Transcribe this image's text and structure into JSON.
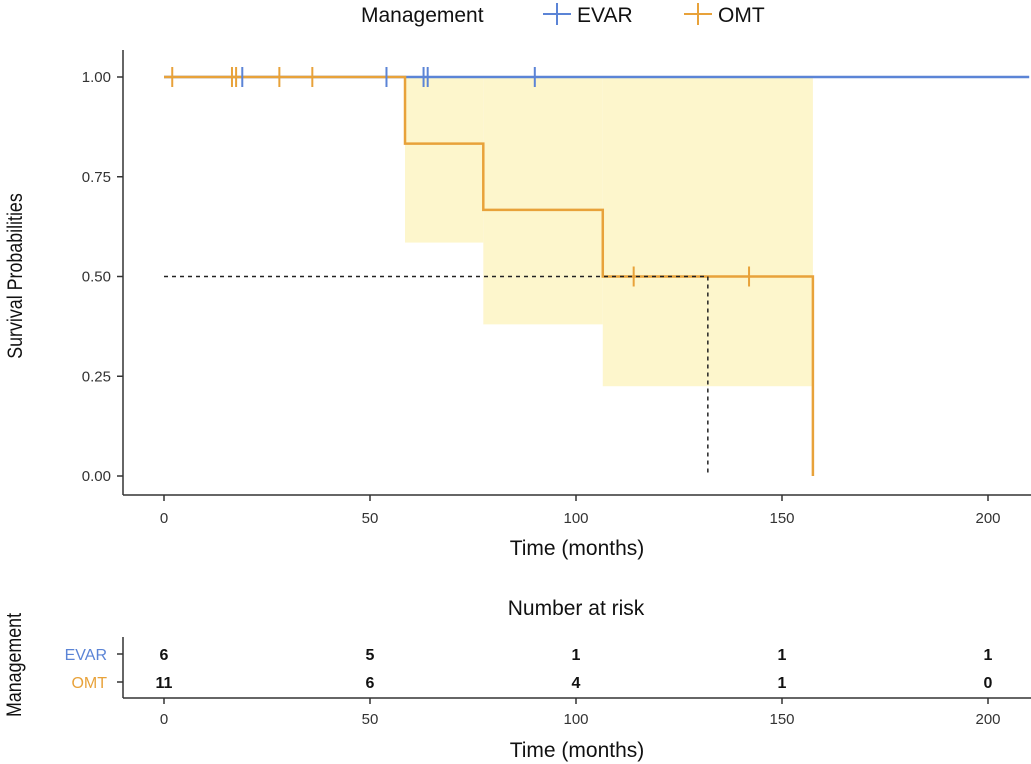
{
  "chart_data": [
    {
      "type": "line",
      "subtype": "kaplan-meier",
      "title": "",
      "xlabel": "Time (months)",
      "ylabel": "Survival Probabilities",
      "xlim": [
        -4,
        210
      ],
      "ylim": [
        0,
        1
      ],
      "xticks": [
        0,
        50,
        100,
        150,
        200
      ],
      "xtick_labels": [
        "0",
        "50",
        "100",
        "150",
        "200"
      ],
      "yticks": [
        0,
        0.25,
        0.5,
        0.75,
        1
      ],
      "ytick_labels": [
        "0.00",
        "0.25",
        "0.50",
        "0.75",
        "1.00"
      ],
      "legend": {
        "title": "Management",
        "position": "top",
        "entries": [
          "EVAR",
          "OMT"
        ]
      },
      "series": [
        {
          "name": "EVAR",
          "color": "#5b84d6",
          "steps": [
            [
              0,
              1.0
            ],
            [
              210,
              1.0
            ]
          ],
          "censor_times": [
            19,
            54,
            63,
            64,
            90
          ]
        },
        {
          "name": "OMT",
          "color": "#e8a23a",
          "steps": [
            [
              0,
              1.0
            ],
            [
              58.5,
              0.833
            ],
            [
              77.5,
              0.667
            ],
            [
              106.5,
              0.5
            ],
            [
              157.5,
              0.0
            ]
          ],
          "censor_times": [
            2,
            16.5,
            17.5,
            28,
            36,
            114,
            142
          ],
          "ci_color": "#fdf6cc",
          "ci": [
            {
              "x0": 58.5,
              "x1": 77.5,
              "lo": 0.585,
              "hi": 1.0
            },
            {
              "x0": 77.5,
              "x1": 106.5,
              "lo": 0.38,
              "hi": 1.0
            },
            {
              "x0": 106.5,
              "x1": 157.5,
              "lo": 0.225,
              "hi": 1.0
            }
          ]
        }
      ],
      "median_line": {
        "y": 0.5,
        "x": 132
      }
    },
    {
      "type": "table",
      "title": "Number at risk",
      "xlabel": "Time (months)",
      "ylabel": "Management",
      "xticks": [
        0,
        50,
        100,
        150,
        200
      ],
      "xtick_labels": [
        "0",
        "50",
        "100",
        "150",
        "200"
      ],
      "rows": [
        {
          "name": "EVAR",
          "color": "#5b84d6",
          "values": [
            "6",
            "5",
            "1",
            "1",
            "1"
          ]
        },
        {
          "name": "OMT",
          "color": "#e8a23a",
          "values": [
            "11",
            "6",
            "4",
            "1",
            "0"
          ]
        }
      ]
    }
  ]
}
